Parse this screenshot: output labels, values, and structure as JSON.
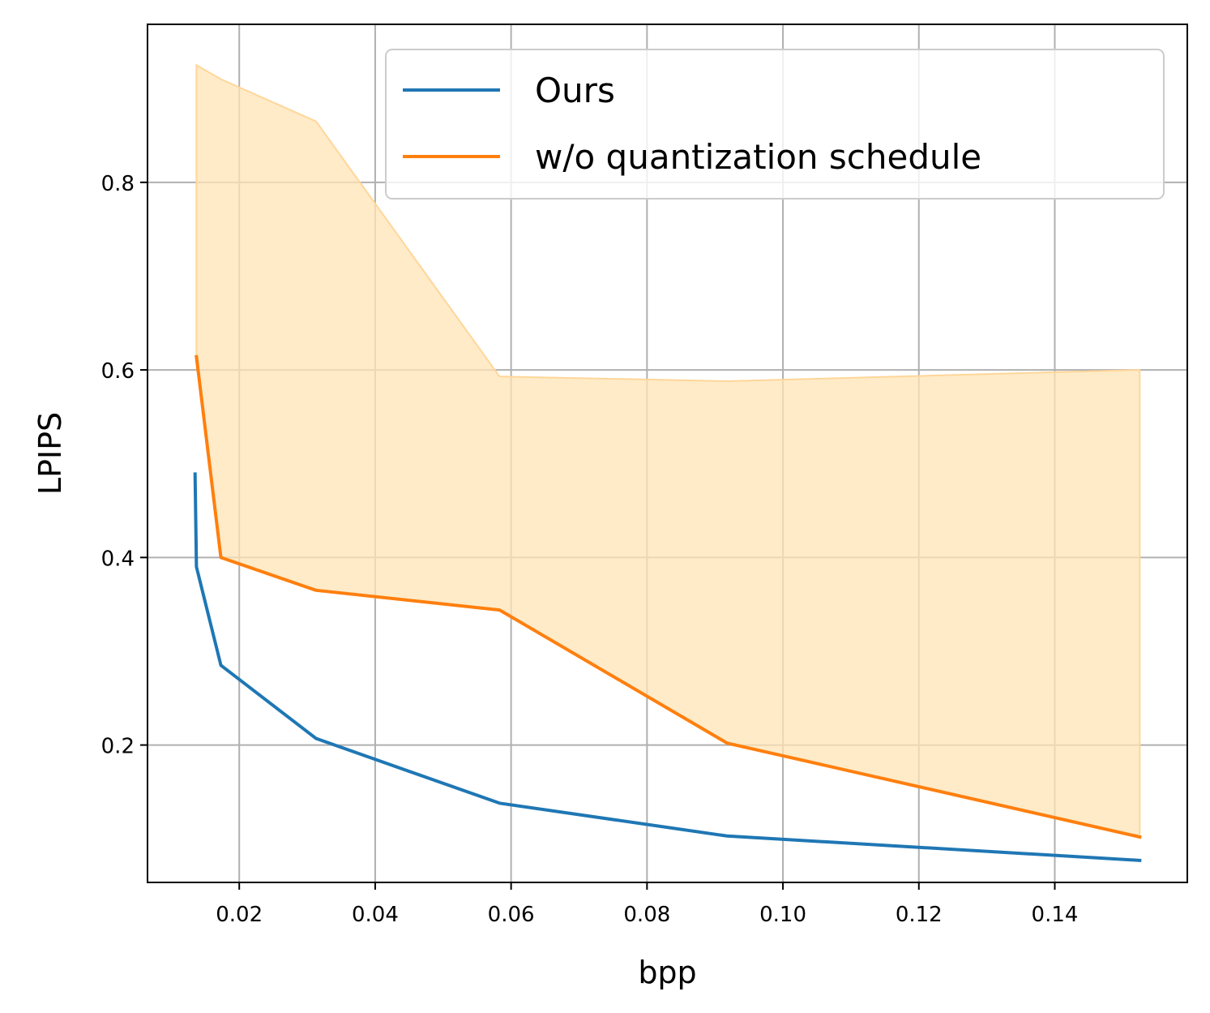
{
  "chart_data": {
    "type": "line",
    "xlabel": "bpp",
    "ylabel": "LPIPS",
    "xlim": [
      0.0065,
      0.1595
    ],
    "ylim": [
      0.0535,
      0.9685
    ],
    "xticks": [
      0.02,
      0.04,
      0.06,
      0.08,
      0.1,
      0.12,
      0.14
    ],
    "xtick_labels": [
      "0.02",
      "0.04",
      "0.06",
      "0.08",
      "0.10",
      "0.12",
      "0.14"
    ],
    "yticks": [
      0.2,
      0.4,
      0.6,
      0.8
    ],
    "ytick_labels": [
      "0.2",
      "0.4",
      "0.6",
      "0.8"
    ],
    "grid": true,
    "legend_position": "top-right",
    "series": [
      {
        "name": "Ours",
        "color": "#1f77b4",
        "x": [
          0.0135,
          0.0137,
          0.0173,
          0.0313,
          0.0583,
          0.0918,
          0.1525
        ],
        "y": [
          0.489,
          0.39,
          0.285,
          0.207,
          0.138,
          0.103,
          0.077
        ]
      },
      {
        "name": "w/o quantization schedule",
        "color": "#ff7f0e",
        "x": [
          0.0137,
          0.0173,
          0.0313,
          0.0583,
          0.0918,
          0.1525
        ],
        "y": [
          0.614,
          0.4,
          0.365,
          0.344,
          0.202,
          0.102
        ]
      }
    ],
    "band": {
      "color": "#ffe4b5",
      "edge_color": "#ffd699",
      "x": [
        0.0137,
        0.0173,
        0.0313,
        0.0583,
        0.0918,
        0.1525
      ],
      "upper": [
        0.925,
        0.91,
        0.865,
        0.593,
        0.588,
        0.6
      ],
      "lower": [
        0.614,
        0.4,
        0.365,
        0.344,
        0.202,
        0.102
      ]
    }
  }
}
